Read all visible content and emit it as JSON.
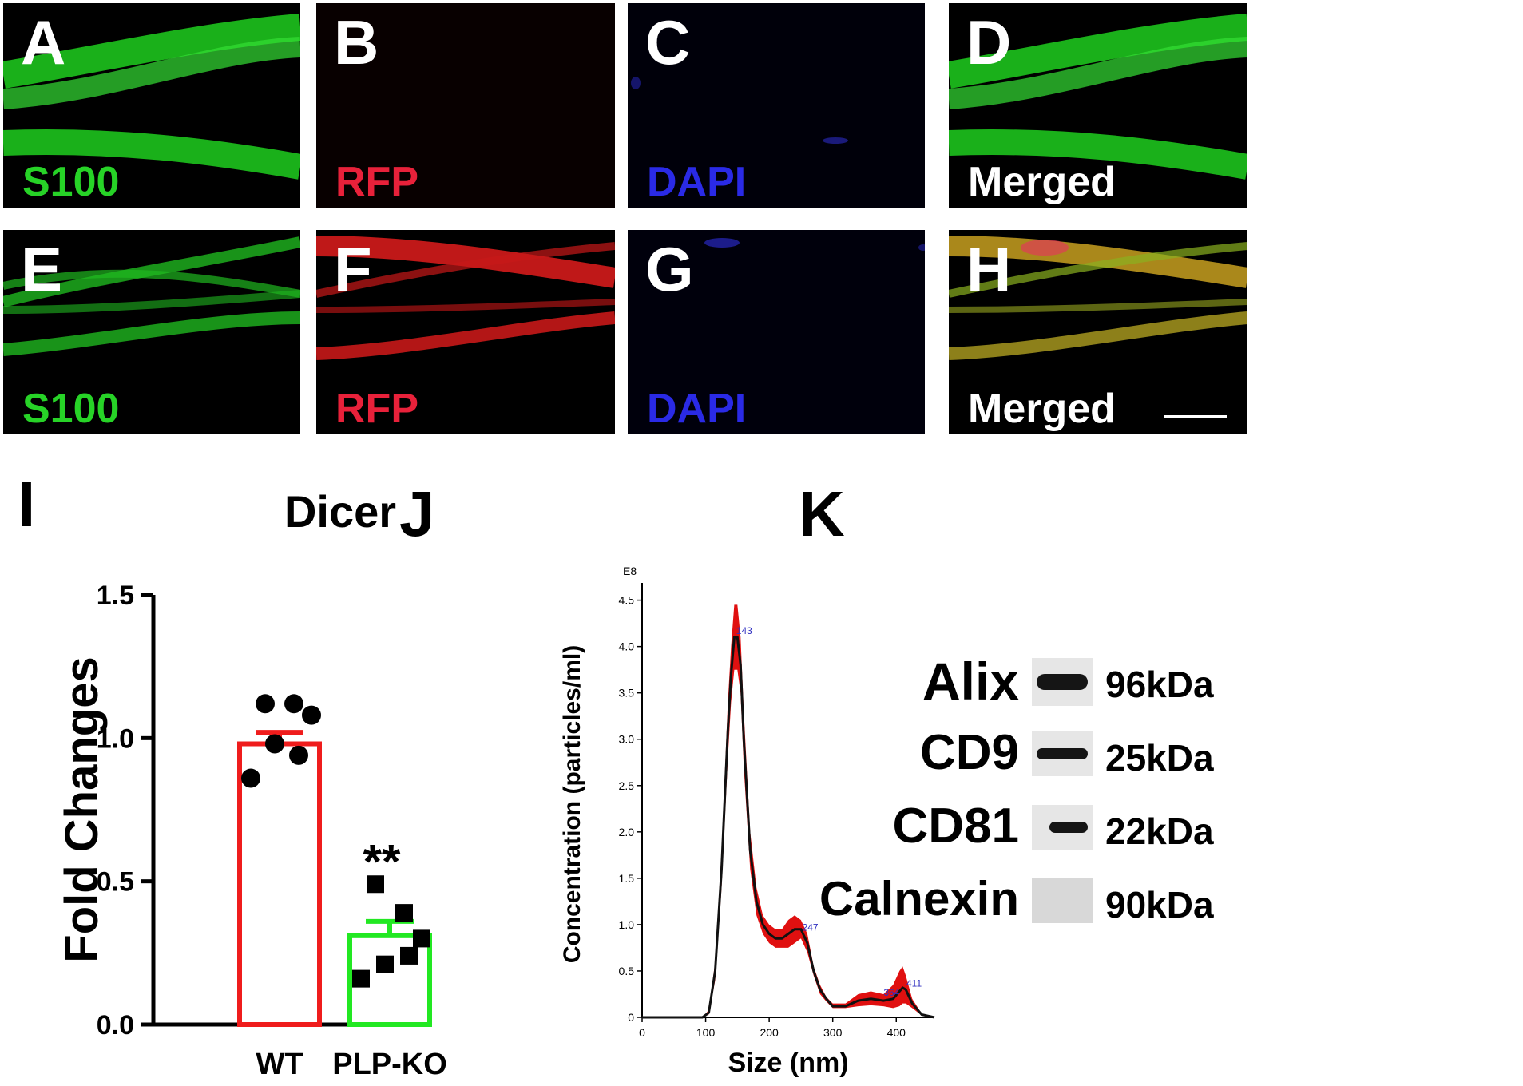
{
  "panels_top": [
    {
      "letter": "A",
      "stain": "S100",
      "stain_color": "#27d327",
      "tone": "green"
    },
    {
      "letter": "B",
      "stain": "RFP",
      "stain_color": "#e8213a",
      "tone": "red-faint"
    },
    {
      "letter": "C",
      "stain": "DAPI",
      "stain_color": "#2a2ae6",
      "tone": "blue"
    },
    {
      "letter": "D",
      "stain": "Merged",
      "stain_color": "#ffffff",
      "tone": "green"
    }
  ],
  "panels_bottom": [
    {
      "letter": "E",
      "stain": "S100",
      "stain_color": "#27d327",
      "tone": "green"
    },
    {
      "letter": "F",
      "stain": "RFP",
      "stain_color": "#e8213a",
      "tone": "red"
    },
    {
      "letter": "G",
      "stain": "DAPI",
      "stain_color": "#2a2ae6",
      "tone": "blue"
    },
    {
      "letter": "H",
      "stain": "Merged",
      "stain_color": "#ffffff",
      "tone": "merged"
    }
  ],
  "panel_I": {
    "letter": "I"
  },
  "panel_J": {
    "letter": "J"
  },
  "panel_K": {
    "letter": "K"
  },
  "chart_data": [
    {
      "type": "bar",
      "title": "Dicer",
      "ylabel": "Fold Changes",
      "xlabel": "",
      "categories": [
        "WT",
        "PLP-KO"
      ],
      "values": [
        0.98,
        0.31
      ],
      "errors": [
        0.04,
        0.05
      ],
      "bar_colors": [
        "#ef1c1c",
        "#22e822"
      ],
      "points": [
        [
          1.12,
          1.12,
          1.08,
          0.94,
          0.98,
          0.86
        ],
        [
          0.49,
          0.39,
          0.3,
          0.24,
          0.21,
          0.16
        ]
      ],
      "annotation": "**",
      "ylim": [
        0,
        1.5
      ],
      "yticks": [
        "0.0",
        "0.5",
        "1.0",
        "1.5"
      ],
      "grid": false
    },
    {
      "type": "line",
      "title": "",
      "xlabel": "Size (nm)",
      "ylabel": "Concentration (particles/ml)",
      "exponent_label": "E8",
      "xlim": [
        0,
        460
      ],
      "ylim": [
        0,
        4.6
      ],
      "xticks": [
        "0",
        "100",
        "200",
        "300",
        "400"
      ],
      "yticks": [
        "0",
        "0.5",
        "1.0",
        "1.5",
        "2.0",
        "2.5",
        "3.0",
        "3.5",
        "4.0",
        "4.5"
      ],
      "x": [
        95,
        105,
        115,
        125,
        135,
        140,
        145,
        150,
        155,
        160,
        170,
        180,
        190,
        200,
        210,
        220,
        230,
        240,
        250,
        260,
        270,
        280,
        290,
        300,
        320,
        340,
        360,
        380,
        395,
        405,
        410,
        415,
        425,
        440,
        460
      ],
      "series": [
        {
          "values": [
            0,
            0.05,
            0.5,
            1.6,
            3.1,
            3.7,
            4.1,
            4.1,
            3.8,
            3.0,
            1.8,
            1.25,
            1.0,
            0.9,
            0.85,
            0.85,
            0.9,
            0.95,
            0.95,
            0.8,
            0.5,
            0.3,
            0.2,
            0.12,
            0.12,
            0.18,
            0.2,
            0.18,
            0.2,
            0.28,
            0.32,
            0.3,
            0.15,
            0.03,
            0
          ],
          "upper": [
            0,
            0.08,
            0.6,
            1.8,
            3.4,
            4.0,
            4.45,
            4.45,
            4.1,
            3.3,
            2.0,
            1.4,
            1.1,
            1.0,
            0.95,
            0.95,
            1.05,
            1.1,
            1.05,
            0.9,
            0.55,
            0.35,
            0.22,
            0.15,
            0.15,
            0.25,
            0.28,
            0.25,
            0.35,
            0.5,
            0.55,
            0.45,
            0.2,
            0.04,
            0
          ],
          "lower": [
            0,
            0.03,
            0.4,
            1.4,
            2.8,
            3.4,
            3.75,
            3.75,
            3.5,
            2.7,
            1.6,
            1.1,
            0.9,
            0.8,
            0.75,
            0.75,
            0.75,
            0.8,
            0.85,
            0.7,
            0.45,
            0.25,
            0.17,
            0.1,
            0.1,
            0.12,
            0.13,
            0.12,
            0.1,
            0.12,
            0.15,
            0.15,
            0.1,
            0.02,
            0
          ]
        }
      ],
      "peak_labels": [
        {
          "x": 143,
          "y": 4.15,
          "text": "143"
        },
        {
          "x": 247,
          "y": 0.95,
          "text": "247"
        },
        {
          "x": 375,
          "y": 0.25,
          "text": "364"
        },
        {
          "x": 411,
          "y": 0.35,
          "text": "411"
        }
      ],
      "line_color": "#111111",
      "band_color": "#e01010"
    }
  ],
  "western_blot": [
    {
      "name": "Alix",
      "kda": "96kDa",
      "band": "strong"
    },
    {
      "name": "CD9",
      "kda": "25kDa",
      "band": "medium"
    },
    {
      "name": "CD81",
      "kda": "22kDa",
      "band": "medium"
    },
    {
      "name": "Calnexin",
      "kda": "90kDa",
      "band": "none"
    }
  ]
}
